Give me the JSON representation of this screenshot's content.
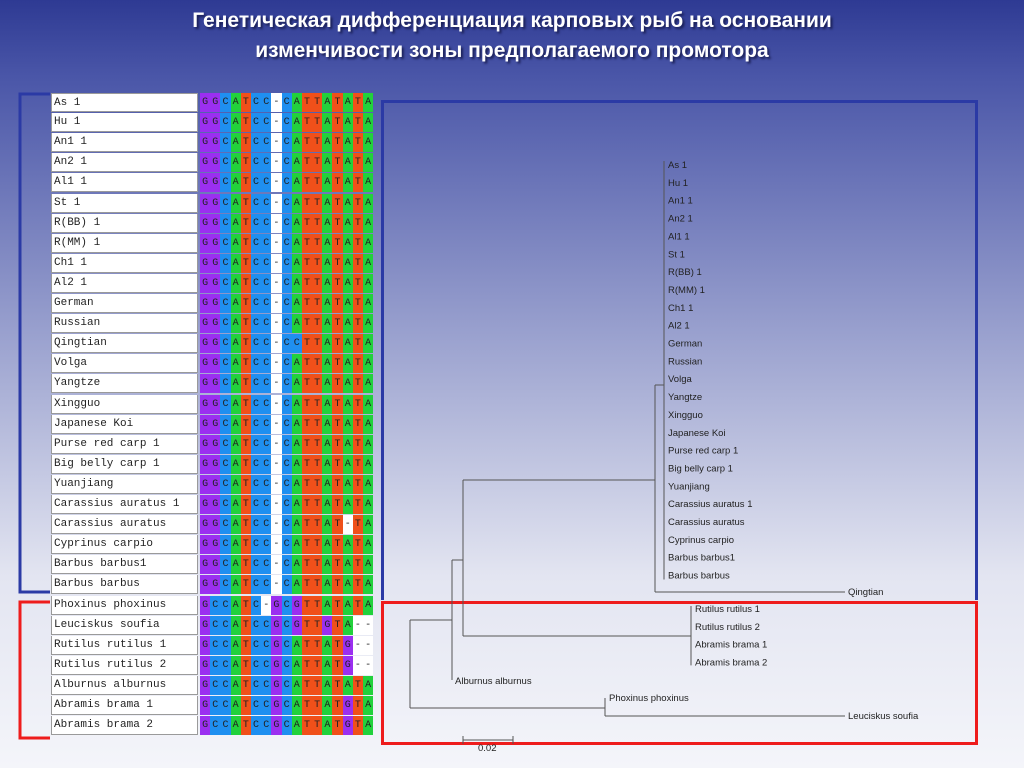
{
  "title": {
    "line1": "Генетическая дифференциация карповых рыб на основании",
    "line2": "изменчивости  зоны предполагаемого промотора"
  },
  "alignment": [
    {
      "name": "As 1",
      "seq": "GGCATCC-CATTATATA"
    },
    {
      "name": "Hu 1",
      "seq": "GGCATCC-CATTATATA"
    },
    {
      "name": "An1 1",
      "seq": "GGCATCC-CATTATATA"
    },
    {
      "name": "An2 1",
      "seq": "GGCATCC-CATTATATA"
    },
    {
      "name": "Al1 1",
      "seq": "GGCATCC-CATTATATA"
    },
    {
      "name": "St 1",
      "seq": "GGCATCC-CATTATATA"
    },
    {
      "name": "R(BB) 1",
      "seq": "GGCATCC-CATTATATA"
    },
    {
      "name": "R(MM) 1",
      "seq": "GGCATCC-CATTATATA"
    },
    {
      "name": "Ch1 1",
      "seq": "GGCATCC-CATTATATA"
    },
    {
      "name": "Al2 1",
      "seq": "GGCATCC-CATTATATA"
    },
    {
      "name": "German",
      "seq": "GGCATCC-CATTATATA"
    },
    {
      "name": "Russian",
      "seq": "GGCATCC-CATTATATA"
    },
    {
      "name": "Qingtian",
      "seq": "GGCATCC-CCTTATATA"
    },
    {
      "name": "Volga",
      "seq": "GGCATCC-CATTATATA"
    },
    {
      "name": "Yangtze",
      "seq": "GGCATCC-CATTATATA"
    },
    {
      "name": "Xingguo",
      "seq": "GGCATCC-CATTATATA"
    },
    {
      "name": "Japanese Koi",
      "seq": "GGCATCC-CATTATATA"
    },
    {
      "name": "Purse red carp 1",
      "seq": "GGCATCC-CATTATATA"
    },
    {
      "name": "Big belly carp 1",
      "seq": "GGCATCC-CATTATATA"
    },
    {
      "name": "Yuanjiang",
      "seq": "GGCATCC-CATTATATA"
    },
    {
      "name": "Carassius auratus 1",
      "seq": "GGCATCC-CATTATATA"
    },
    {
      "name": "Carassius auratus",
      "seq": "GGCATCC-CATTAT-TA"
    },
    {
      "name": "Cyprinus carpio",
      "seq": "GGCATCC-CATTATATA"
    },
    {
      "name": "Barbus barbus1",
      "seq": "GGCATCC-CATTATATA"
    },
    {
      "name": "Barbus barbus",
      "seq": "GGCATCC-CATTATATA"
    },
    {
      "name": "Phoxinus phoxinus",
      "seq": "GCCATC-GCGTTATATA"
    },
    {
      "name": "Leuciskus soufia",
      "seq": "GCCATCCGCGTTGTA--"
    },
    {
      "name": "Rutilus rutilus 1",
      "seq": "GCCATCCGCATTATG--"
    },
    {
      "name": "Rutilus rutilus 2",
      "seq": "GCCATCCGCATTATG--"
    },
    {
      "name": "Alburnus alburnus",
      "seq": "GCCATCCGCATTATATA"
    },
    {
      "name": "Abramis brama 1",
      "seq": "GCCATCCGCATTATGTA"
    },
    {
      "name": "Abramis brama 2",
      "seq": "GCCATCCGCATTATGTA"
    }
  ],
  "base_colors": {
    "G": "#9b2ff0",
    "C": "#1f8ff0",
    "A": "#22d13c",
    "T": "#f0501a",
    "-": "#ffffff"
  },
  "tree": {
    "carp_clade": [
      "As 1",
      "Hu 1",
      "An1 1",
      "An2 1",
      "Al1 1",
      "St 1",
      "R(BB) 1",
      "R(MM) 1",
      "Ch1 1",
      "Al2 1",
      "German",
      "Russian",
      "Volga",
      "Yangtze",
      "Xingguo",
      "Japanese Koi",
      "Purse red carp 1",
      "Big belly carp 1",
      "Yuanjiang",
      "Carassius auratus 1",
      "Carassius auratus",
      "Cyprinus carpio",
      "Barbus barbus1",
      "Barbus barbus"
    ],
    "outlier": "Qingtian",
    "rutilus_abramis": [
      "Rutilus rutilus 1",
      "Rutilus rutilus 2",
      "Abramis brama 1",
      "Abramis brama 2"
    ],
    "alburnus": "Alburnus alburnus",
    "phoxinus": "Phoxinus phoxinus",
    "leuciskus": "Leuciskus soufia",
    "scale_label": "0.02"
  },
  "colors": {
    "red_box": "#ee1c1c",
    "blue_box": "#2b3aa5"
  }
}
